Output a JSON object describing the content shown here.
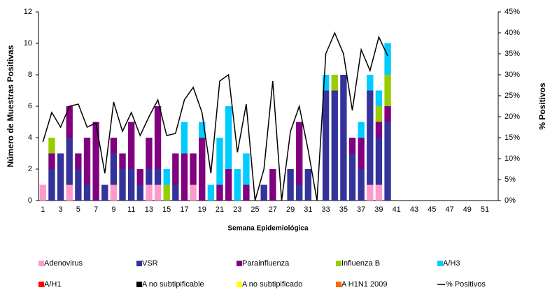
{
  "chart_data": {
    "type": "stacked-bar-line",
    "x_label": "Semana Epidemiológica",
    "y_label": "Número de Muestras Positivas",
    "y2_label": "% Positivos",
    "categories": [
      "1",
      null,
      "3",
      null,
      "5",
      null,
      "7",
      null,
      "9",
      null,
      "11",
      null,
      "13",
      null,
      "15",
      null,
      "17",
      null,
      "19",
      null,
      "21",
      null,
      "23",
      null,
      "25",
      null,
      "27",
      null,
      "29",
      null,
      "31",
      null,
      "33",
      null,
      "35",
      null,
      "37",
      null,
      "39",
      null,
      "41",
      null,
      "43",
      null,
      "45",
      null,
      "47",
      null,
      "49",
      null,
      "51",
      null
    ],
    "ylim": [
      0,
      12
    ],
    "yticks": [
      0,
      2,
      4,
      6,
      8,
      10,
      12
    ],
    "y2lim": [
      0,
      45
    ],
    "y2ticks": [
      {
        "value": 0,
        "label": "0%"
      },
      {
        "value": 5,
        "label": "5%"
      },
      {
        "value": 10,
        "label": "10%"
      },
      {
        "value": 15,
        "label": "15%"
      },
      {
        "value": 20,
        "label": "20%"
      },
      {
        "value": 25,
        "label": "25%"
      },
      {
        "value": 30,
        "label": "30%"
      },
      {
        "value": 35,
        "label": "35%"
      },
      {
        "value": 40,
        "label": "40%"
      },
      {
        "value": 45,
        "label": "45%"
      }
    ],
    "grid": false,
    "series": [
      {
        "name": "Adenovirus",
        "color": "#ff99cc",
        "kind": "bar",
        "values": [
          1,
          0,
          0,
          1,
          0,
          0,
          0,
          0,
          1,
          0,
          0,
          0,
          1,
          1,
          0,
          0,
          0,
          1,
          0,
          0,
          0,
          0,
          0,
          0,
          0,
          0,
          0,
          0,
          0,
          0,
          0,
          0,
          0,
          0,
          0,
          0,
          0,
          1,
          1,
          0,
          null,
          null,
          null,
          null,
          null,
          null,
          null,
          null,
          null,
          null,
          null,
          null
        ]
      },
      {
        "name": "VSR",
        "color": "#333399",
        "kind": "bar",
        "values": [
          0,
          2,
          3,
          3,
          2,
          1,
          0,
          1,
          2,
          2,
          2,
          1,
          1,
          1,
          0,
          1,
          0,
          0,
          0,
          0,
          0,
          0,
          0,
          0,
          0,
          1,
          0,
          0,
          2,
          1,
          2,
          0,
          7,
          7,
          8,
          3,
          2,
          6,
          3,
          5,
          null,
          null,
          null,
          null,
          null,
          null,
          null,
          null,
          null,
          null,
          null,
          null
        ]
      },
      {
        "name": "Parainfluenza",
        "color": "#800080",
        "kind": "bar",
        "values": [
          0,
          1,
          0,
          2,
          1,
          3,
          5,
          0,
          1,
          1,
          3,
          1,
          2,
          4,
          0,
          2,
          3,
          2,
          4,
          0,
          1,
          2,
          0,
          1,
          0,
          0,
          2,
          0,
          0,
          4,
          0,
          0,
          0,
          0,
          0,
          1,
          2,
          0,
          1,
          1,
          null,
          null,
          null,
          null,
          null,
          null,
          null,
          null,
          null,
          null,
          null,
          null
        ]
      },
      {
        "name": "Influenza  B",
        "color": "#99cc00",
        "kind": "bar",
        "values": [
          0,
          1,
          0,
          0,
          0,
          0,
          0,
          0,
          0,
          0,
          0,
          0,
          0,
          0,
          1,
          0,
          0,
          0,
          0,
          0,
          0,
          0,
          0,
          0,
          0,
          0,
          0,
          0,
          0,
          0,
          0,
          0,
          0,
          1,
          0,
          0,
          0,
          0,
          1,
          2,
          null,
          null,
          null,
          null,
          null,
          null,
          null,
          null,
          null,
          null,
          null,
          null
        ]
      },
      {
        "name": "A/H3",
        "color": "#00ccff",
        "kind": "bar",
        "values": [
          0,
          0,
          0,
          0,
          0,
          0,
          0,
          0,
          0,
          0,
          0,
          0,
          0,
          0,
          1,
          0,
          2,
          0,
          1,
          1,
          3,
          4,
          2,
          2,
          0,
          0,
          0,
          0,
          0,
          0,
          0,
          0,
          1,
          0,
          0,
          0,
          1,
          1,
          1,
          2,
          null,
          null,
          null,
          null,
          null,
          null,
          null,
          null,
          null,
          null,
          null,
          null
        ]
      },
      {
        "name": "A/H1",
        "color": "#ff0000",
        "kind": "bar",
        "values": [
          0,
          0,
          0,
          0,
          0,
          0,
          0,
          0,
          0,
          0,
          0,
          0,
          0,
          0,
          0,
          0,
          0,
          0,
          0,
          0,
          0,
          0,
          0,
          0,
          0,
          0,
          0,
          0,
          0,
          0,
          0,
          0,
          0,
          0,
          0,
          0,
          0,
          0,
          0,
          0,
          null,
          null,
          null,
          null,
          null,
          null,
          null,
          null,
          null,
          null,
          null,
          null
        ]
      },
      {
        "name": "A no subtipificable",
        "color": "#000000",
        "kind": "bar",
        "values": [
          0,
          0,
          0,
          0,
          0,
          0,
          0,
          0,
          0,
          0,
          0,
          0,
          0,
          0,
          0,
          0,
          0,
          0,
          0,
          0,
          0,
          0,
          0,
          0,
          0,
          0,
          0,
          0,
          0,
          0,
          0,
          0,
          0,
          0,
          0,
          0,
          0,
          0,
          0,
          0,
          null,
          null,
          null,
          null,
          null,
          null,
          null,
          null,
          null,
          null,
          null,
          null
        ]
      },
      {
        "name": "A no subtipificado",
        "color": "#ffff00",
        "kind": "bar",
        "values": [
          0,
          0,
          0,
          0,
          0,
          0,
          0,
          0,
          0,
          0,
          0,
          0,
          0,
          0,
          0,
          0,
          0,
          0,
          0,
          0,
          0,
          0,
          0,
          0,
          0,
          0,
          0,
          0,
          0,
          0,
          0,
          0,
          0,
          0,
          0,
          0,
          0,
          0,
          0,
          0,
          null,
          null,
          null,
          null,
          null,
          null,
          null,
          null,
          null,
          null,
          null,
          null
        ]
      },
      {
        "name": "A H1N1 2009",
        "color": "#ff6600",
        "kind": "bar",
        "values": [
          0,
          0,
          0,
          0,
          0,
          0,
          0,
          0,
          0,
          0,
          0,
          0,
          0,
          0,
          0,
          0,
          0,
          0,
          0,
          0,
          0,
          0,
          0,
          0,
          0,
          0,
          0,
          0,
          0,
          0,
          0,
          0,
          0,
          0,
          0,
          0,
          0,
          0,
          0,
          0,
          null,
          null,
          null,
          null,
          null,
          null,
          null,
          null,
          null,
          null,
          null,
          null
        ]
      },
      {
        "name": "% Positivos",
        "color": "#000000",
        "kind": "line",
        "axis": "y2",
        "values": [
          14,
          21,
          17.5,
          22.5,
          23,
          17.5,
          18.5,
          6.5,
          23.5,
          16.5,
          21,
          15.5,
          20,
          24,
          15.5,
          16,
          24,
          27,
          21,
          6.5,
          28.5,
          30,
          11.5,
          23,
          0,
          7.5,
          28.5,
          0,
          16.5,
          22.5,
          12,
          0,
          35,
          40,
          35,
          21.5,
          36,
          31,
          39,
          34.5,
          null,
          null,
          null,
          null,
          null,
          null,
          null,
          null,
          null,
          null,
          null,
          null
        ]
      }
    ]
  }
}
